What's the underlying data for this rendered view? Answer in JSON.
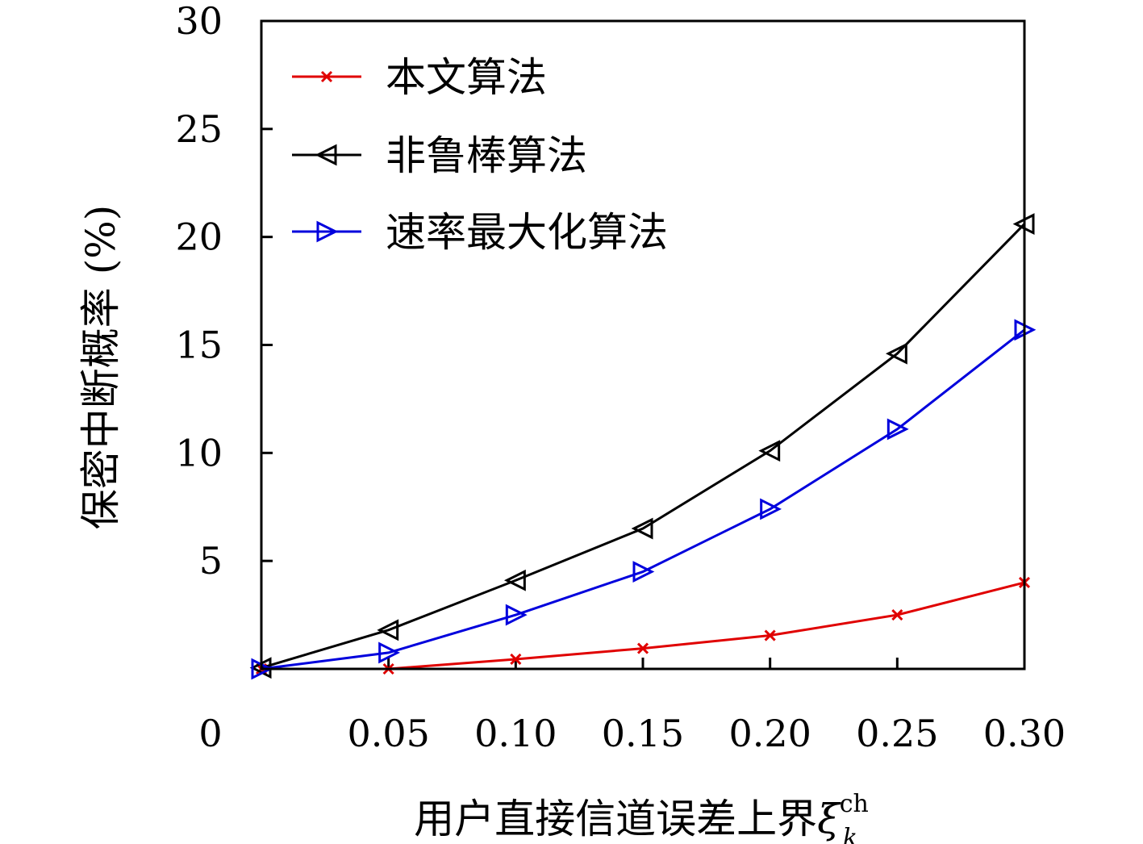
{
  "chart_data": {
    "type": "line",
    "xlabel": "用户直接信道误差上界",
    "xlabel_symbol": "ξ",
    "xlabel_sup": "ch",
    "xlabel_sub": "k",
    "ylabel": "保密中断概率 (%)",
    "x": [
      0,
      0.05,
      0.1,
      0.15,
      0.2,
      0.25,
      0.3
    ],
    "x_tick_labels": [
      "0",
      "0.05",
      "0.10",
      "0.15",
      "0.20",
      "0.25",
      "0.30"
    ],
    "y_tick_labels": [
      "5",
      "10",
      "15",
      "20",
      "25",
      "30"
    ],
    "y_tick_values": [
      5,
      10,
      15,
      20,
      25,
      30
    ],
    "xlim": [
      0,
      0.3
    ],
    "ylim": [
      0,
      30
    ],
    "grid": false,
    "legend_position": "top-left",
    "series": [
      {
        "name": "本文算法",
        "color": "#e00000",
        "marker": "x-mark",
        "values": [
          0,
          0,
          0.45,
          0.95,
          1.55,
          2.5,
          4.0
        ]
      },
      {
        "name": "非鲁棒算法",
        "color": "#000000",
        "marker": "triangle-left",
        "values": [
          0.05,
          1.8,
          4.1,
          6.5,
          10.1,
          14.6,
          20.6
        ]
      },
      {
        "name": "速率最大化算法",
        "color": "#0000dd",
        "marker": "triangle-right",
        "values": [
          0,
          0.75,
          2.5,
          4.5,
          7.4,
          11.1,
          15.7
        ]
      }
    ]
  }
}
